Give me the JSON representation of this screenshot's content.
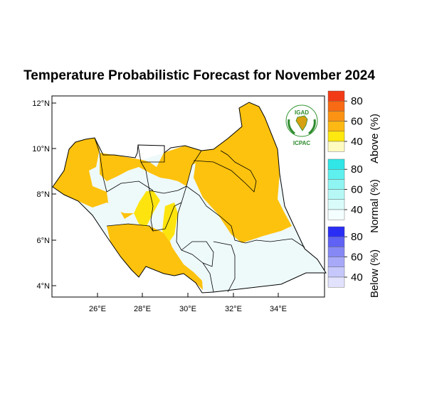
{
  "title": "Temperature Probabilistic Forecast for November 2024",
  "map": {
    "x_ticks": [
      "26°E",
      "28°E",
      "30°E",
      "32°E",
      "34°E"
    ],
    "y_ticks": [
      "12°N",
      "10°N",
      "8°N",
      "6°N",
      "4°N"
    ],
    "region": "South Sudan"
  },
  "logo": {
    "top_text": "IGAD",
    "bottom_text": "ICPAC"
  },
  "legend": {
    "above": {
      "label": "Above (%)",
      "ticks": [
        "80",
        "60",
        "40"
      ],
      "colors": [
        "#f23b16",
        "#f86a13",
        "#fb9213",
        "#fdb813",
        "#fde80f",
        "#fffbc0"
      ]
    },
    "normal": {
      "label": "Normal (%)",
      "ticks": [
        "80",
        "60",
        "40"
      ],
      "colors": [
        "#30e6e6",
        "#5ef0ee",
        "#8ff5f2",
        "#b6f8f6",
        "#d9fbfa",
        "#f4fefe"
      ]
    },
    "below": {
      "label": "Below (%)",
      "ticks": [
        "80",
        "60",
        "40"
      ],
      "colors": [
        "#2a2ef4",
        "#5f62f4",
        "#8688f6",
        "#a7a9f8",
        "#c6c7fa",
        "#e2e2fd"
      ]
    }
  },
  "colors": {
    "above_main": "#fdc20d",
    "above_light": "#fee40e",
    "normal": "#eef9fa",
    "border": "#000000"
  }
}
